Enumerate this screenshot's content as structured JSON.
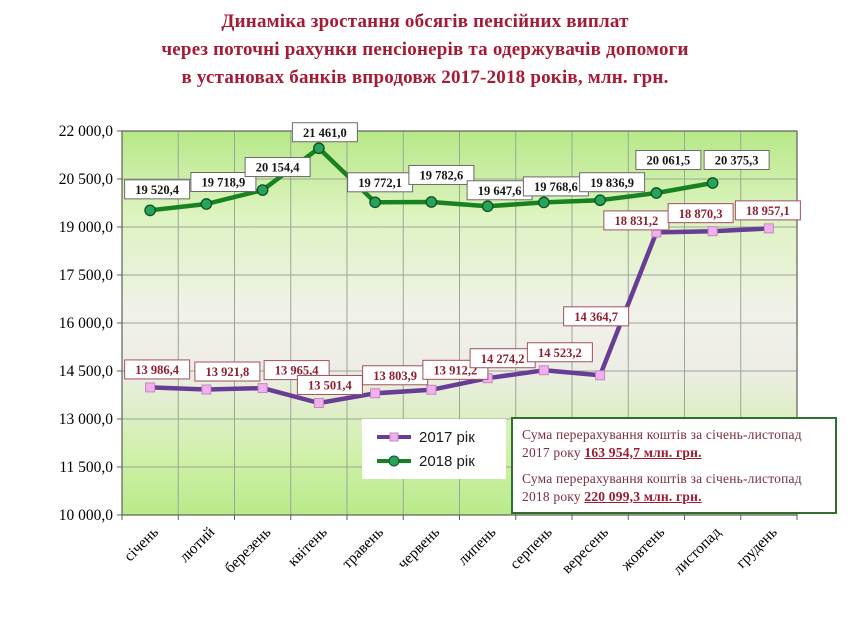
{
  "title": {
    "line1": "Динаміка зростання обсягів пенсійних виплат",
    "line2": "через поточні рахунки пенсіонерів та одержувачів допомоги",
    "line3": "в установах банків впродовж 2017-2018 років, млн. грн."
  },
  "chart_data": {
    "type": "line",
    "title": "Динаміка зростання обсягів пенсійних виплат через поточні рахунки пенсіонерів та одержувачів допомоги в установах банків впродовж 2017-2018 років, млн. грн.",
    "categories": [
      "січень",
      "лютий",
      "березень",
      "квітень",
      "травень",
      "червень",
      "липень",
      "серпень",
      "вересень",
      "жовтень",
      "листопад",
      "грудень"
    ],
    "ylim": [
      10000,
      22000
    ],
    "y_step": 1500,
    "y_tick_labels": [
      "22 000,0",
      "20 500,0",
      "19 000,0",
      "17 500,0",
      "16 000,0",
      "14 500,0",
      "13 000,0",
      "11 500,0",
      "10 000,0"
    ],
    "grid": true,
    "legend_position": "bottom-center-inside",
    "series": [
      {
        "name": "2017 рік",
        "values": [
          13986.4,
          13921.8,
          13965.4,
          13501.4,
          13803.9,
          13912.2,
          14274.2,
          14523.2,
          14364.7,
          18831.2,
          18870.3,
          18957.1
        ],
        "point_labels": [
          "13 986,4",
          "13 921,8",
          "13 965,4",
          "13 501,4",
          "13 803,9",
          "13 912,2",
          "14 274,2",
          "14 523,2",
          "14 364,7",
          "18 831,2",
          "18 870,3",
          "18 957,1"
        ],
        "line_color": "#673d96",
        "marker": "square",
        "marker_fill": "#f0b0ee",
        "marker_stroke": "#c488c2",
        "label_text_color": "#8e1f2f",
        "label_border_color": "#a05060",
        "label_dx": [
          7,
          21,
          34,
          11,
          20,
          24,
          15,
          16,
          -4,
          -20,
          -12,
          -1
        ],
        "label_dy": [
          -18,
          -18,
          -18,
          -18,
          -18,
          -20,
          -20,
          -18,
          -59,
          -12,
          -18,
          -18
        ]
      },
      {
        "name": "2018 рік",
        "values": [
          19520.4,
          19718.9,
          20154.4,
          21461.0,
          19772.1,
          19782.6,
          19647.6,
          19768.6,
          19836.9,
          20061.5,
          20375.3
        ],
        "point_labels": [
          "19 520,4",
          "19 718,9",
          "20 154,4",
          "21 461,0",
          "19 772,1",
          "19 782,6",
          "19 647,6",
          "19 768,6",
          "19 836,9",
          "20 061,5",
          "20 375,3"
        ],
        "line_color": "#17821f",
        "marker": "circle",
        "marker_fill": "#27a35c",
        "marker_stroke": "#0c5223",
        "label_text_color": "#151515",
        "label_border_color": "#6a6a6a",
        "label_dx": [
          7,
          17,
          15,
          6,
          5,
          10,
          12,
          12,
          12,
          12,
          24
        ],
        "label_dy": [
          -21,
          -22,
          -23,
          -16,
          -20,
          -27,
          -16,
          -16,
          -18,
          -33,
          -23
        ]
      }
    ]
  },
  "legend": {
    "items": [
      {
        "label": "2017 рік"
      },
      {
        "label": "2018 рік"
      }
    ]
  },
  "info_box": {
    "row1": {
      "text": "Сума перерахування коштів  за січень-листопад 2017 року",
      "amount": "163 954,7 млн. грн."
    },
    "row2": {
      "text": "Сума перерахування коштів  за січень-листопад 2018 року",
      "amount": "220 099,3 млн. грн."
    }
  }
}
